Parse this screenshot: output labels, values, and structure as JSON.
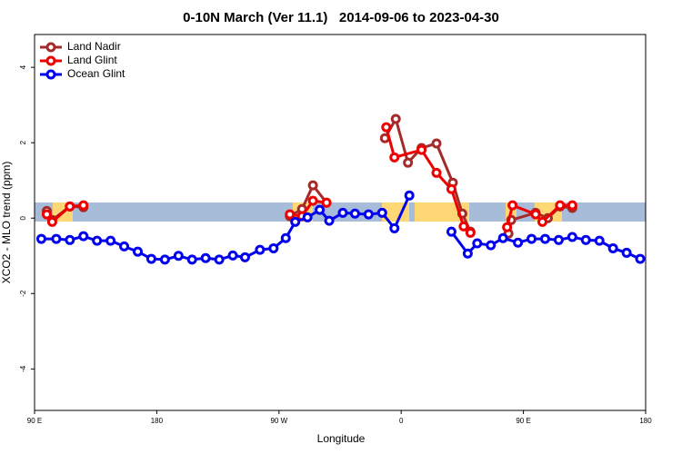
{
  "chart_data": {
    "type": "line",
    "title": "0-10N March (Ver 11.1)   2014-09-06 to 2023-04-30",
    "x_label": "Longitude",
    "y_label": "XCO2 - MLO trend (ppm)",
    "xlim": [
      90,
      540
    ],
    "xticks": [
      {
        "value": 90,
        "label": "90 E"
      },
      180,
      {
        "value": 270,
        "label": "90 W"
      },
      {
        "value": 360,
        "label": "0"
      },
      {
        "value": 450,
        "label": "90 E"
      },
      {
        "value": 540,
        "label": "180"
      }
    ],
    "ylim": [
      -5.1,
      4.87
    ],
    "yticks": [
      -4,
      -2,
      0,
      2,
      4
    ],
    "legend": "top-left",
    "series": [
      {
        "name": "Land Nadir",
        "color": "#a52a2a",
        "x": [
          99,
          103,
          116,
          126,
          null,
          278,
          287,
          295,
          305,
          null,
          348,
          356,
          365,
          375,
          386,
          398,
          405,
          411,
          null,
          439,
          441,
          459,
          468,
          477,
          486
        ],
        "values": [
          0.19,
          -0.05,
          0.31,
          0.29,
          null,
          0.05,
          0.24,
          0.87,
          0.41,
          null,
          2.12,
          2.63,
          1.47,
          1.86,
          1.98,
          0.94,
          0.12,
          -0.36,
          null,
          -0.41,
          -0.05,
          0.14,
          0,
          0.31,
          0.27
        ]
      },
      {
        "name": "Land Glint",
        "color": "#ee0000",
        "x": [
          99,
          103,
          116,
          126,
          null,
          278,
          287,
          295,
          305,
          null,
          349,
          355,
          375,
          386,
          397,
          406,
          411,
          null,
          438,
          442,
          459,
          464,
          477,
          486
        ],
        "values": [
          0.1,
          -0.1,
          0.31,
          0.34,
          null,
          0.1,
          0.05,
          0.46,
          0.41,
          null,
          2.41,
          1.61,
          1.81,
          1.2,
          0.77,
          -0.22,
          -0.39,
          null,
          -0.24,
          0.34,
          0.1,
          -0.1,
          0.34,
          0.34
        ]
      },
      {
        "name": "Ocean Glint",
        "color": "#0000ee",
        "x": [
          95,
          106,
          116,
          126,
          136,
          146,
          156,
          166,
          176,
          186,
          196,
          206,
          216,
          226,
          236,
          245,
          256,
          266,
          275,
          282,
          291,
          300,
          307,
          317,
          326,
          336,
          346,
          355,
          366,
          null,
          397,
          409,
          416,
          426,
          435,
          446,
          456,
          466,
          476,
          486,
          496,
          506,
          516,
          526,
          536
        ],
        "values": [
          -0.55,
          -0.55,
          -0.58,
          -0.48,
          -0.6,
          -0.6,
          -0.75,
          -0.89,
          -1.08,
          -1.1,
          -1.0,
          -1.1,
          -1.06,
          -1.1,
          -0.99,
          -1.04,
          -0.84,
          -0.8,
          -0.53,
          -0.1,
          0.02,
          0.22,
          -0.07,
          0.14,
          0.12,
          0.1,
          0.14,
          -0.27,
          0.6,
          null,
          -0.36,
          -0.94,
          -0.67,
          -0.72,
          -0.53,
          -0.65,
          -0.55,
          -0.55,
          -0.58,
          -0.5,
          -0.58,
          -0.6,
          -0.8,
          -0.92,
          -1.08
        ]
      }
    ]
  }
}
